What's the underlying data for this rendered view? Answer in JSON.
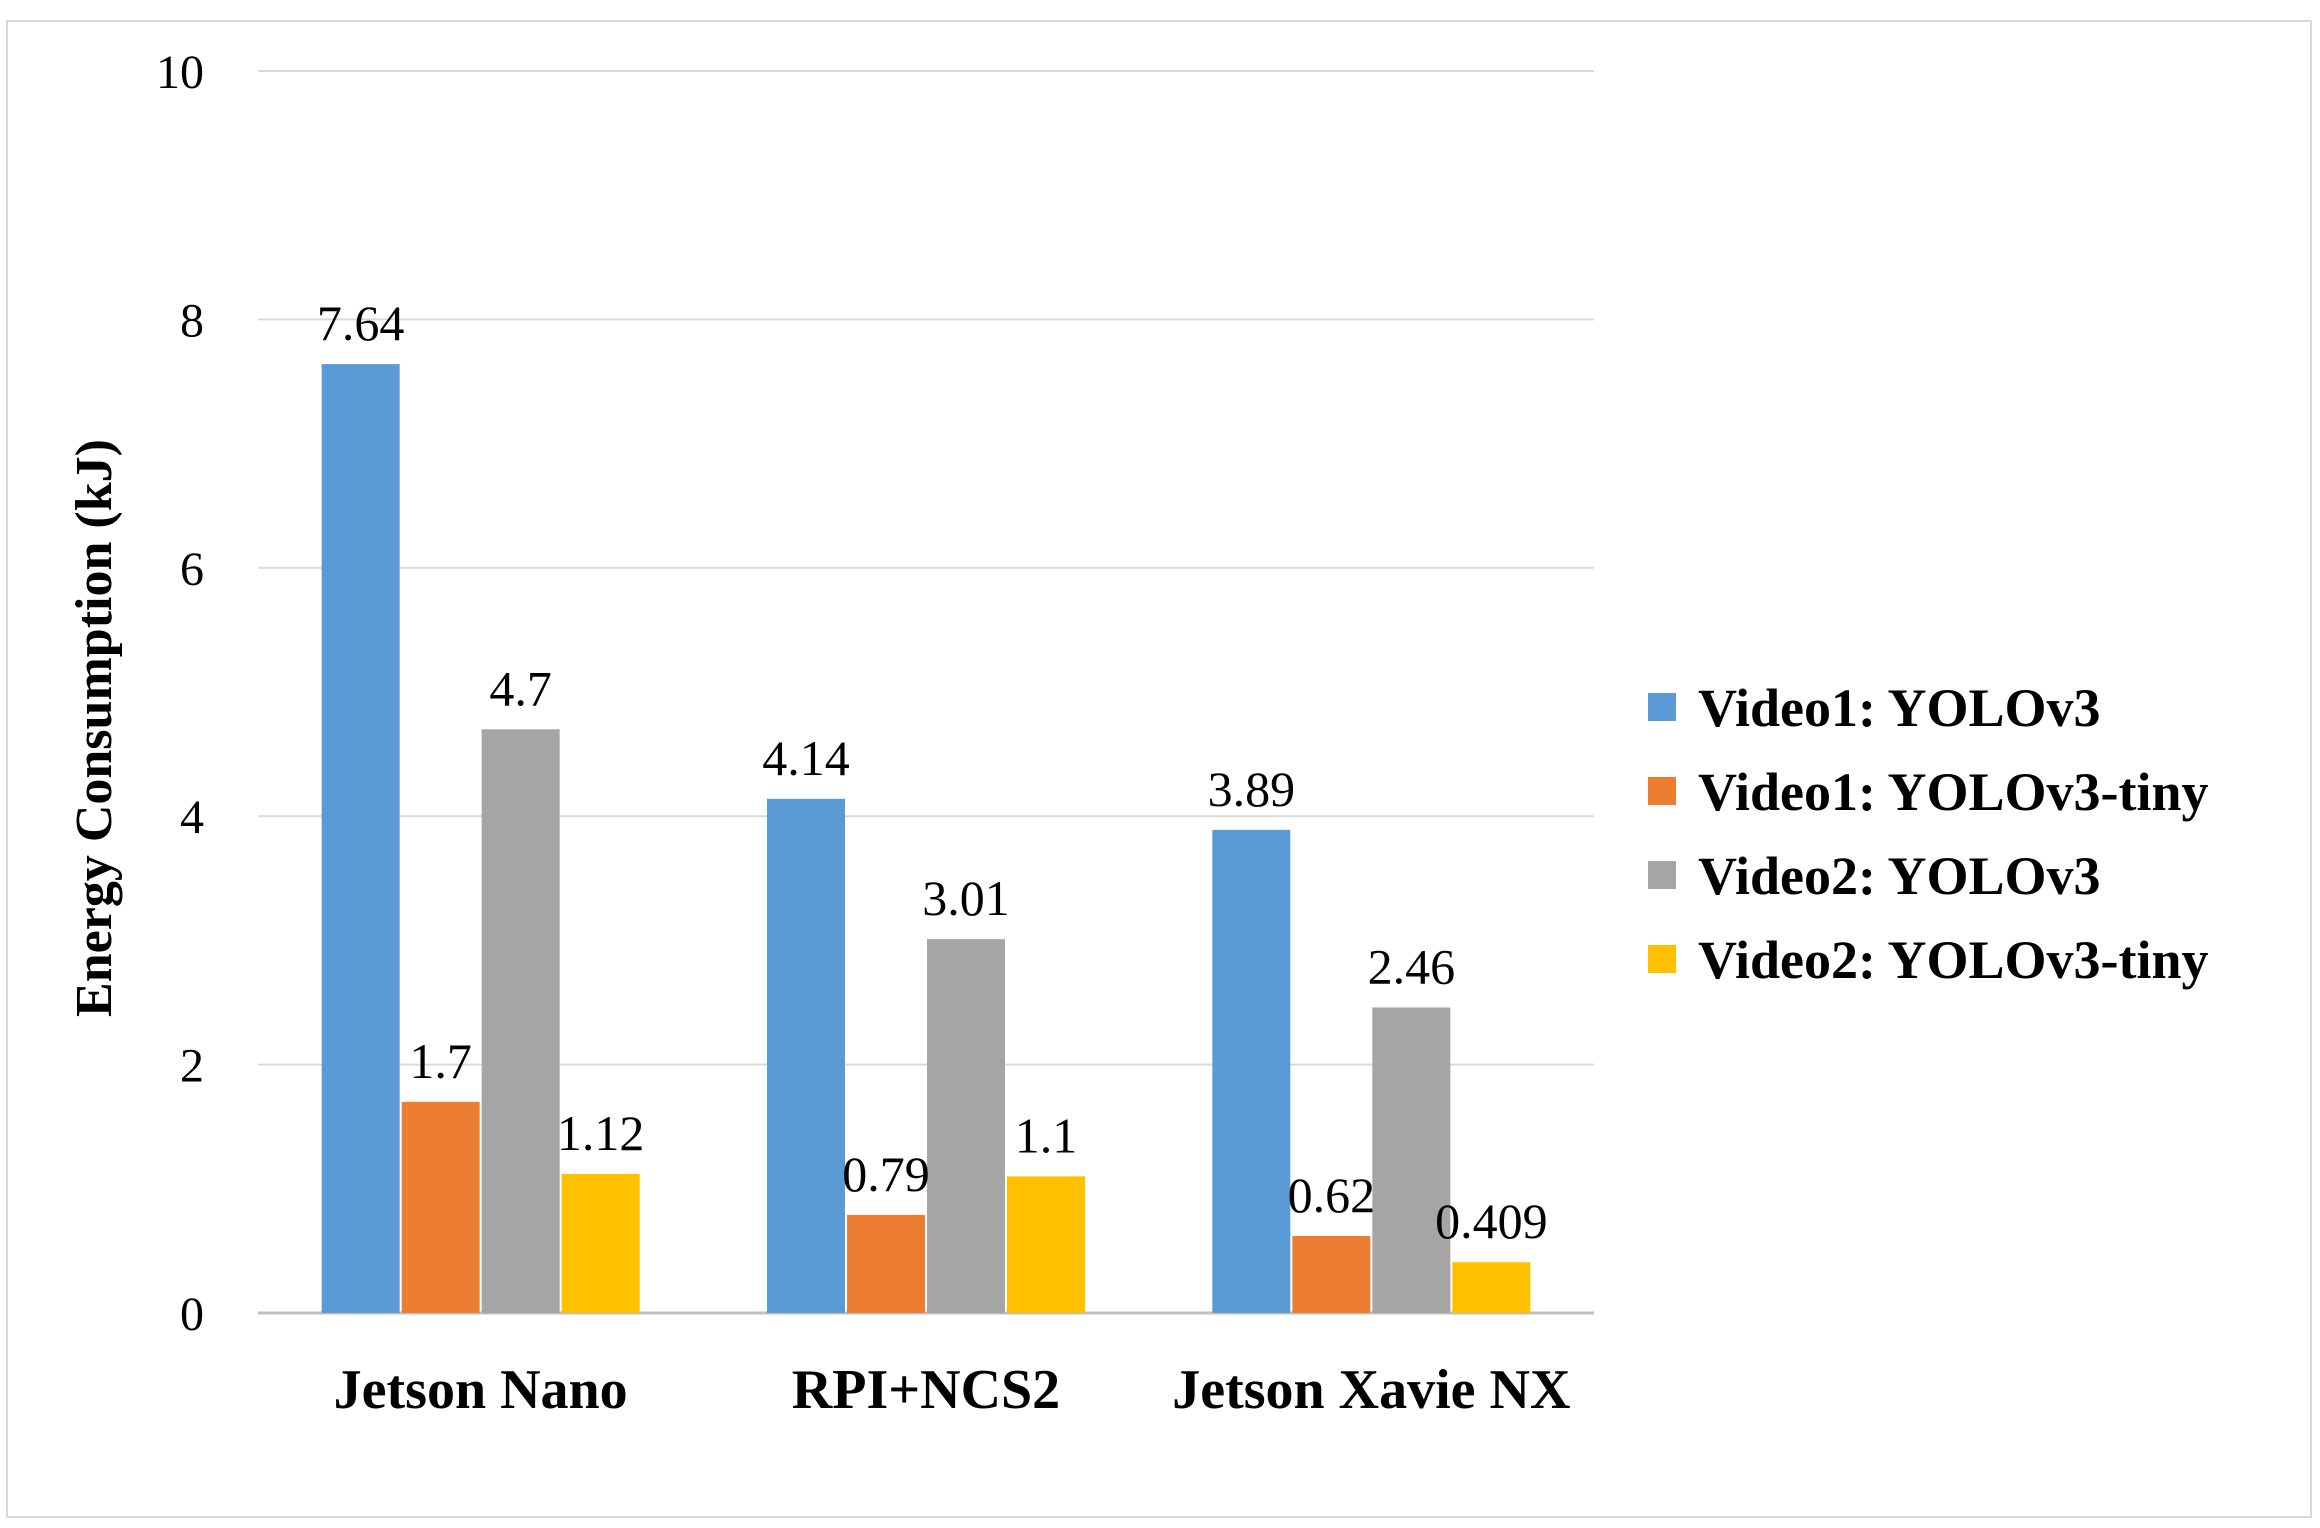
{
  "chart_data": {
    "type": "bar",
    "title": "",
    "xlabel": "",
    "ylabel": "Energy Consumption (kJ)",
    "ylim": [
      0,
      10
    ],
    "yticks": [
      "0",
      "2",
      "4",
      "6",
      "8",
      "10"
    ],
    "categories": [
      "Jetson Nano",
      "RPI+NCS2",
      "Jetson Xavie NX"
    ],
    "series": [
      {
        "name": "Video1: YOLOv3",
        "color": "#5B9BD5",
        "values": [
          7.64,
          4.14,
          3.89
        ],
        "labels": [
          "7.64",
          "4.14",
          "3.89"
        ]
      },
      {
        "name": "Video1: YOLOv3-tiny",
        "color": "#ED7D31",
        "values": [
          1.7,
          0.79,
          0.62
        ],
        "labels": [
          "1.7",
          "0.79",
          "0.62"
        ]
      },
      {
        "name": "Video2: YOLOv3",
        "color": "#A5A5A5",
        "values": [
          4.7,
          3.01,
          2.46
        ],
        "labels": [
          "4.7",
          "3.01",
          "2.46"
        ]
      },
      {
        "name": "Video2: YOLOv3-tiny",
        "color": "#FFC000",
        "values": [
          1.12,
          1.1,
          0.409
        ],
        "labels": [
          "1.12",
          "1.1",
          "0.409"
        ]
      }
    ],
    "grid": true,
    "legend_position": "right"
  }
}
